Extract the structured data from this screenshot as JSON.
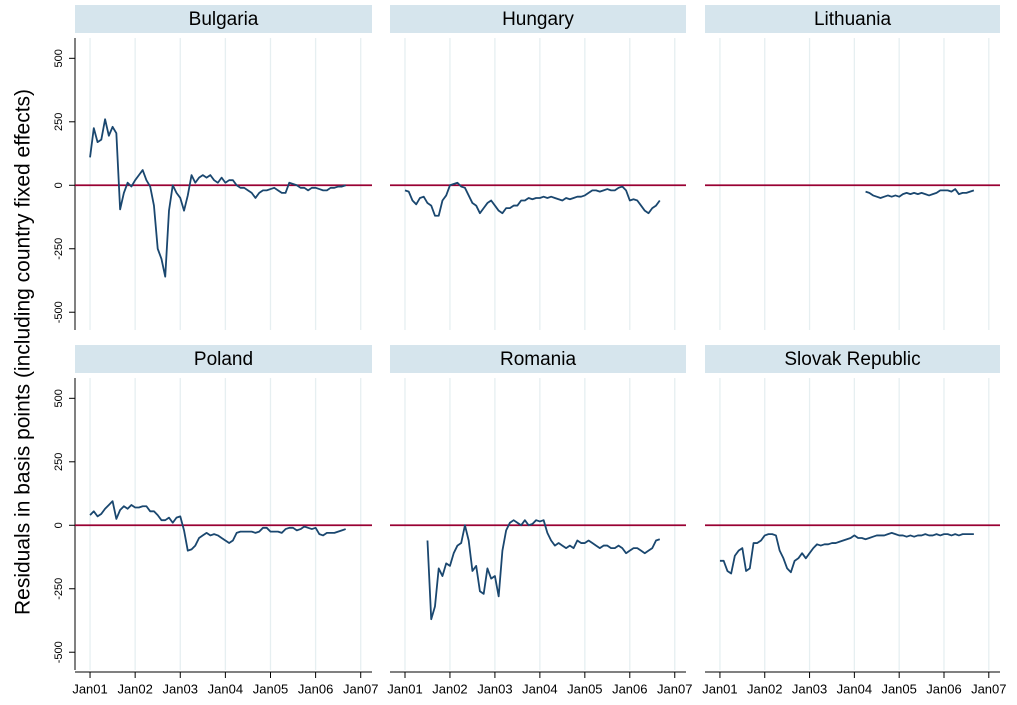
{
  "chart_data": {
    "type": "line",
    "y_label": "Residuals in basis points (including country fixed effects)",
    "xlim": [
      "2000-09",
      "2007-04"
    ],
    "xticks": [
      {
        "value": "2001-01",
        "label": "Jan01"
      },
      {
        "value": "2002-01",
        "label": "Jan02"
      },
      {
        "value": "2003-01",
        "label": "Jan03"
      },
      {
        "value": "2004-01",
        "label": "Jan04"
      },
      {
        "value": "2005-01",
        "label": "Jan05"
      },
      {
        "value": "2006-01",
        "label": "Jan06"
      },
      {
        "value": "2007-01",
        "label": "Jan07"
      }
    ],
    "ylim": [
      -570,
      580
    ],
    "yticks": [
      -500,
      -250,
      0,
      250,
      500
    ],
    "grid": "x",
    "color": "#1a476f",
    "strip_color": "#d6e5ed",
    "reference_line": {
      "y": 0,
      "color": "#990033"
    },
    "facets": [
      {
        "title": "Bulgaria",
        "x": [
          "2001-01",
          "2001-02",
          "2001-03",
          "2001-04",
          "2001-05",
          "2001-06",
          "2001-07",
          "2001-08",
          "2001-09",
          "2001-10",
          "2001-11",
          "2001-12",
          "2002-01",
          "2002-02",
          "2002-03",
          "2002-04",
          "2002-05",
          "2002-06",
          "2002-07",
          "2002-08",
          "2002-09",
          "2002-10",
          "2002-11",
          "2002-12",
          "2003-01",
          "2003-02",
          "2003-03",
          "2003-04",
          "2003-05",
          "2003-06",
          "2003-07",
          "2003-08",
          "2003-09",
          "2003-10",
          "2003-11",
          "2003-12",
          "2004-01",
          "2004-02",
          "2004-03",
          "2004-04",
          "2004-05",
          "2004-06",
          "2004-07",
          "2004-08",
          "2004-09",
          "2004-10",
          "2004-11",
          "2004-12",
          "2005-01",
          "2005-02",
          "2005-03",
          "2005-04",
          "2005-05",
          "2005-06",
          "2005-07",
          "2005-08",
          "2005-09",
          "2005-10",
          "2005-11",
          "2005-12",
          "2006-01",
          "2006-02",
          "2006-03",
          "2006-04",
          "2006-05",
          "2006-06",
          "2006-07",
          "2006-08",
          "2006-09"
        ],
        "values": [
          110,
          225,
          170,
          180,
          260,
          195,
          230,
          205,
          -95,
          -30,
          10,
          -5,
          20,
          40,
          60,
          20,
          -5,
          -80,
          -250,
          -290,
          -360,
          -100,
          0,
          -30,
          -50,
          -100,
          -40,
          40,
          10,
          30,
          40,
          30,
          40,
          20,
          10,
          30,
          10,
          20,
          20,
          0,
          -10,
          -10,
          -20,
          -30,
          -50,
          -30,
          -20,
          -20,
          -15,
          -10,
          -20,
          -30,
          -30,
          10,
          5,
          0,
          -10,
          -10,
          -20,
          -10,
          -10,
          -15,
          -20,
          -20,
          -10,
          -10,
          -5,
          -5,
          0
        ]
      },
      {
        "title": "Hungary",
        "x": [
          "2001-01",
          "2001-02",
          "2001-03",
          "2001-04",
          "2001-05",
          "2001-06",
          "2001-07",
          "2001-08",
          "2001-09",
          "2001-10",
          "2001-11",
          "2001-12",
          "2002-01",
          "2002-02",
          "2002-03",
          "2002-04",
          "2002-05",
          "2002-06",
          "2002-07",
          "2002-08",
          "2002-09",
          "2002-10",
          "2002-11",
          "2002-12",
          "2003-01",
          "2003-02",
          "2003-03",
          "2003-04",
          "2003-05",
          "2003-06",
          "2003-07",
          "2003-08",
          "2003-09",
          "2003-10",
          "2003-11",
          "2003-12",
          "2004-01",
          "2004-02",
          "2004-03",
          "2004-04",
          "2004-05",
          "2004-06",
          "2004-07",
          "2004-08",
          "2004-09",
          "2004-10",
          "2004-11",
          "2004-12",
          "2005-01",
          "2005-02",
          "2005-03",
          "2005-04",
          "2005-05",
          "2005-06",
          "2005-07",
          "2005-08",
          "2005-09",
          "2005-10",
          "2005-11",
          "2005-12",
          "2006-01",
          "2006-02",
          "2006-03",
          "2006-04",
          "2006-05",
          "2006-06",
          "2006-07",
          "2006-08",
          "2006-09"
        ],
        "values": [
          -20,
          -25,
          -60,
          -75,
          -50,
          -45,
          -70,
          -80,
          -120,
          -120,
          -60,
          -40,
          0,
          5,
          10,
          -5,
          -10,
          -40,
          -70,
          -80,
          -110,
          -90,
          -70,
          -60,
          -80,
          -100,
          -110,
          -90,
          -90,
          -80,
          -80,
          -60,
          -60,
          -50,
          -55,
          -50,
          -50,
          -45,
          -50,
          -45,
          -50,
          -55,
          -60,
          -50,
          -55,
          -50,
          -45,
          -45,
          -40,
          -30,
          -20,
          -20,
          -25,
          -20,
          -15,
          -20,
          -20,
          -10,
          -5,
          -20,
          -60,
          -55,
          -60,
          -80,
          -100,
          -110,
          -90,
          -80,
          -60
        ]
      },
      {
        "title": "Lithuania",
        "x": [
          "2004-04",
          "2004-05",
          "2004-06",
          "2004-07",
          "2004-08",
          "2004-09",
          "2004-10",
          "2004-11",
          "2004-12",
          "2005-01",
          "2005-02",
          "2005-03",
          "2005-04",
          "2005-05",
          "2005-06",
          "2005-07",
          "2005-08",
          "2005-09",
          "2005-10",
          "2005-11",
          "2005-12",
          "2006-01",
          "2006-02",
          "2006-03",
          "2006-04",
          "2006-05",
          "2006-06",
          "2006-07",
          "2006-08",
          "2006-09"
        ],
        "values": [
          -25,
          -30,
          -40,
          -45,
          -50,
          -45,
          -40,
          -45,
          -40,
          -45,
          -35,
          -30,
          -35,
          -30,
          -35,
          -30,
          -35,
          -40,
          -35,
          -30,
          -20,
          -20,
          -20,
          -25,
          -15,
          -35,
          -30,
          -30,
          -25,
          -20
        ]
      },
      {
        "title": "Poland",
        "x": [
          "2001-01",
          "2001-02",
          "2001-03",
          "2001-04",
          "2001-05",
          "2001-06",
          "2001-07",
          "2001-08",
          "2001-09",
          "2001-10",
          "2001-11",
          "2001-12",
          "2002-01",
          "2002-02",
          "2002-03",
          "2002-04",
          "2002-05",
          "2002-06",
          "2002-07",
          "2002-08",
          "2002-09",
          "2002-10",
          "2002-11",
          "2002-12",
          "2003-01",
          "2003-02",
          "2003-03",
          "2003-04",
          "2003-05",
          "2003-06",
          "2003-07",
          "2003-08",
          "2003-09",
          "2003-10",
          "2003-11",
          "2003-12",
          "2004-01",
          "2004-02",
          "2004-03",
          "2004-04",
          "2004-05",
          "2004-06",
          "2004-07",
          "2004-08",
          "2004-09",
          "2004-10",
          "2004-11",
          "2004-12",
          "2005-01",
          "2005-02",
          "2005-03",
          "2005-04",
          "2005-05",
          "2005-06",
          "2005-07",
          "2005-08",
          "2005-09",
          "2005-10",
          "2005-11",
          "2005-12",
          "2006-01",
          "2006-02",
          "2006-03",
          "2006-04",
          "2006-05",
          "2006-06",
          "2006-07",
          "2006-08",
          "2006-09"
        ],
        "values": [
          40,
          55,
          35,
          45,
          65,
          80,
          95,
          25,
          60,
          75,
          65,
          80,
          70,
          70,
          75,
          75,
          55,
          55,
          40,
          20,
          20,
          30,
          10,
          30,
          35,
          -20,
          -100,
          -95,
          -80,
          -50,
          -40,
          -30,
          -40,
          -35,
          -40,
          -50,
          -60,
          -70,
          -60,
          -30,
          -25,
          -25,
          -25,
          -25,
          -30,
          -25,
          -10,
          -10,
          -25,
          -25,
          -25,
          -30,
          -15,
          -10,
          -10,
          -20,
          -15,
          -5,
          -10,
          -15,
          -10,
          -35,
          -40,
          -30,
          -30,
          -30,
          -25,
          -20,
          -15
        ]
      },
      {
        "title": "Romania",
        "x": [
          "2001-07",
          "2001-08",
          "2001-09",
          "2001-10",
          "2001-11",
          "2001-12",
          "2002-01",
          "2002-02",
          "2002-03",
          "2002-04",
          "2002-05",
          "2002-06",
          "2002-07",
          "2002-08",
          "2002-09",
          "2002-10",
          "2002-11",
          "2002-12",
          "2003-01",
          "2003-02",
          "2003-03",
          "2003-04",
          "2003-05",
          "2003-06",
          "2003-07",
          "2003-08",
          "2003-09",
          "2003-10",
          "2003-11",
          "2003-12",
          "2004-01",
          "2004-02",
          "2004-03",
          "2004-04",
          "2004-05",
          "2004-06",
          "2004-07",
          "2004-08",
          "2004-09",
          "2004-10",
          "2004-11",
          "2004-12",
          "2005-01",
          "2005-02",
          "2005-03",
          "2005-04",
          "2005-05",
          "2005-06",
          "2005-07",
          "2005-08",
          "2005-09",
          "2005-10",
          "2005-11",
          "2005-12",
          "2006-01",
          "2006-02",
          "2006-03",
          "2006-04",
          "2006-05",
          "2006-06",
          "2006-07",
          "2006-08",
          "2006-09"
        ],
        "values": [
          -60,
          -370,
          -320,
          -170,
          -200,
          -150,
          -160,
          -110,
          -80,
          -70,
          0,
          -60,
          -180,
          -160,
          -260,
          -270,
          -170,
          -210,
          -200,
          -280,
          -100,
          -20,
          10,
          20,
          10,
          0,
          20,
          0,
          5,
          20,
          15,
          20,
          -30,
          -60,
          -80,
          -70,
          -80,
          -90,
          -80,
          -90,
          -60,
          -70,
          -70,
          -60,
          -70,
          -80,
          -90,
          -80,
          -80,
          -90,
          -90,
          -80,
          -90,
          -110,
          -100,
          -90,
          -90,
          -100,
          -110,
          -100,
          -90,
          -60,
          -55
        ]
      },
      {
        "title": "Slovak Republic",
        "x": [
          "2001-01",
          "2001-02",
          "2001-03",
          "2001-04",
          "2001-05",
          "2001-06",
          "2001-07",
          "2001-08",
          "2001-09",
          "2001-10",
          "2001-11",
          "2001-12",
          "2002-01",
          "2002-02",
          "2002-03",
          "2002-04",
          "2002-05",
          "2002-06",
          "2002-07",
          "2002-08",
          "2002-09",
          "2002-10",
          "2002-11",
          "2002-12",
          "2003-01",
          "2003-02",
          "2003-03",
          "2003-04",
          "2003-05",
          "2003-06",
          "2003-07",
          "2003-08",
          "2003-09",
          "2003-10",
          "2003-11",
          "2003-12",
          "2004-01",
          "2004-02",
          "2004-03",
          "2004-04",
          "2004-05",
          "2004-06",
          "2004-07",
          "2004-08",
          "2004-09",
          "2004-10",
          "2004-11",
          "2004-12",
          "2005-01",
          "2005-02",
          "2005-03",
          "2005-04",
          "2005-05",
          "2005-06",
          "2005-07",
          "2005-08",
          "2005-09",
          "2005-10",
          "2005-11",
          "2005-12",
          "2006-01",
          "2006-02",
          "2006-03",
          "2006-04",
          "2006-05",
          "2006-06",
          "2006-07",
          "2006-08",
          "2006-09"
        ],
        "values": [
          -140,
          -140,
          -180,
          -190,
          -120,
          -100,
          -90,
          -180,
          -170,
          -70,
          -70,
          -60,
          -40,
          -35,
          -35,
          -40,
          -100,
          -130,
          -170,
          -185,
          -140,
          -130,
          -110,
          -130,
          -110,
          -90,
          -75,
          -80,
          -75,
          -75,
          -70,
          -70,
          -65,
          -60,
          -55,
          -50,
          -40,
          -50,
          -50,
          -55,
          -50,
          -45,
          -40,
          -40,
          -40,
          -35,
          -30,
          -35,
          -40,
          -40,
          -45,
          -40,
          -45,
          -40,
          -40,
          -35,
          -40,
          -40,
          -35,
          -40,
          -35,
          -35,
          -40,
          -35,
          -40,
          -35,
          -35,
          -35,
          -35
        ]
      }
    ]
  }
}
